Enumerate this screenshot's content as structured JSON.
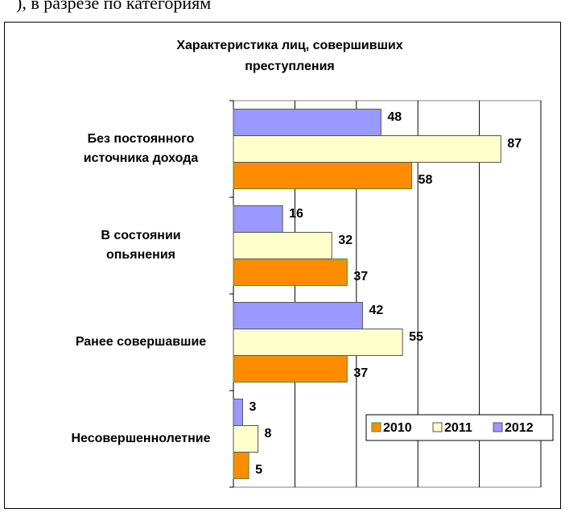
{
  "header_text": "), в разрезе по категориям",
  "chart_data": {
    "type": "bar",
    "orientation": "horizontal",
    "title": "Характеристика лиц, совершивших\nпреступления",
    "categories": [
      "Без постоянного\nисточника дохода",
      "В состоянии\nопьянения",
      "Ранее совершавшие",
      "Несовершеннолетние"
    ],
    "series": [
      {
        "name": "2010",
        "color": "#ff8c00",
        "values": [
          58,
          37,
          37,
          5
        ]
      },
      {
        "name": "2011",
        "color": "#ffffcc",
        "values": [
          87,
          32,
          55,
          8
        ]
      },
      {
        "name": "2012",
        "color": "#9999ff",
        "values": [
          48,
          16,
          42,
          3
        ]
      }
    ],
    "xlim": [
      0,
      100
    ],
    "xticks": [
      0,
      20,
      40,
      60,
      80,
      100
    ],
    "grid": true,
    "legend": "lower right"
  }
}
